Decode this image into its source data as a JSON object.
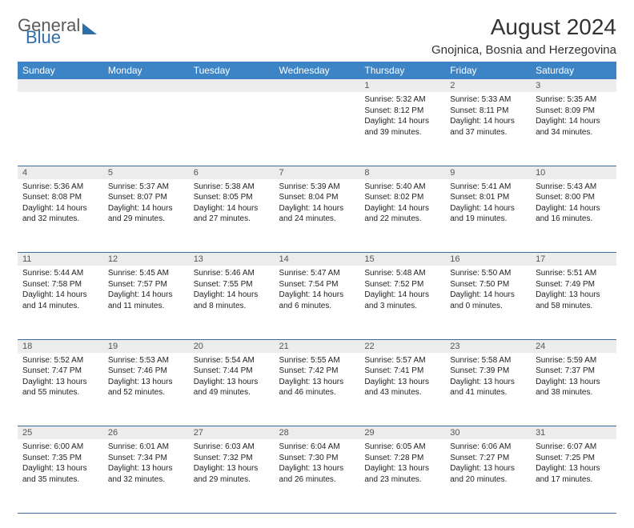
{
  "brand": {
    "line1": "General",
    "line2": "Blue"
  },
  "title": "August 2024",
  "location": "Gnojnica, Bosnia and Herzegovina",
  "colors": {
    "header_bg": "#3d84c6",
    "header_text": "#ffffff",
    "daynum_bg": "#ececec",
    "border": "#3d6a9a",
    "text": "#222222",
    "page_bg": "#ffffff"
  },
  "day_headers": [
    "Sunday",
    "Monday",
    "Tuesday",
    "Wednesday",
    "Thursday",
    "Friday",
    "Saturday"
  ],
  "weeks": [
    [
      null,
      null,
      null,
      null,
      {
        "n": "1",
        "sr": "5:32 AM",
        "ss": "8:12 PM",
        "dl": "14 hours and 39 minutes."
      },
      {
        "n": "2",
        "sr": "5:33 AM",
        "ss": "8:11 PM",
        "dl": "14 hours and 37 minutes."
      },
      {
        "n": "3",
        "sr": "5:35 AM",
        "ss": "8:09 PM",
        "dl": "14 hours and 34 minutes."
      }
    ],
    [
      {
        "n": "4",
        "sr": "5:36 AM",
        "ss": "8:08 PM",
        "dl": "14 hours and 32 minutes."
      },
      {
        "n": "5",
        "sr": "5:37 AM",
        "ss": "8:07 PM",
        "dl": "14 hours and 29 minutes."
      },
      {
        "n": "6",
        "sr": "5:38 AM",
        "ss": "8:05 PM",
        "dl": "14 hours and 27 minutes."
      },
      {
        "n": "7",
        "sr": "5:39 AM",
        "ss": "8:04 PM",
        "dl": "14 hours and 24 minutes."
      },
      {
        "n": "8",
        "sr": "5:40 AM",
        "ss": "8:02 PM",
        "dl": "14 hours and 22 minutes."
      },
      {
        "n": "9",
        "sr": "5:41 AM",
        "ss": "8:01 PM",
        "dl": "14 hours and 19 minutes."
      },
      {
        "n": "10",
        "sr": "5:43 AM",
        "ss": "8:00 PM",
        "dl": "14 hours and 16 minutes."
      }
    ],
    [
      {
        "n": "11",
        "sr": "5:44 AM",
        "ss": "7:58 PM",
        "dl": "14 hours and 14 minutes."
      },
      {
        "n": "12",
        "sr": "5:45 AM",
        "ss": "7:57 PM",
        "dl": "14 hours and 11 minutes."
      },
      {
        "n": "13",
        "sr": "5:46 AM",
        "ss": "7:55 PM",
        "dl": "14 hours and 8 minutes."
      },
      {
        "n": "14",
        "sr": "5:47 AM",
        "ss": "7:54 PM",
        "dl": "14 hours and 6 minutes."
      },
      {
        "n": "15",
        "sr": "5:48 AM",
        "ss": "7:52 PM",
        "dl": "14 hours and 3 minutes."
      },
      {
        "n": "16",
        "sr": "5:50 AM",
        "ss": "7:50 PM",
        "dl": "14 hours and 0 minutes."
      },
      {
        "n": "17",
        "sr": "5:51 AM",
        "ss": "7:49 PM",
        "dl": "13 hours and 58 minutes."
      }
    ],
    [
      {
        "n": "18",
        "sr": "5:52 AM",
        "ss": "7:47 PM",
        "dl": "13 hours and 55 minutes."
      },
      {
        "n": "19",
        "sr": "5:53 AM",
        "ss": "7:46 PM",
        "dl": "13 hours and 52 minutes."
      },
      {
        "n": "20",
        "sr": "5:54 AM",
        "ss": "7:44 PM",
        "dl": "13 hours and 49 minutes."
      },
      {
        "n": "21",
        "sr": "5:55 AM",
        "ss": "7:42 PM",
        "dl": "13 hours and 46 minutes."
      },
      {
        "n": "22",
        "sr": "5:57 AM",
        "ss": "7:41 PM",
        "dl": "13 hours and 43 minutes."
      },
      {
        "n": "23",
        "sr": "5:58 AM",
        "ss": "7:39 PM",
        "dl": "13 hours and 41 minutes."
      },
      {
        "n": "24",
        "sr": "5:59 AM",
        "ss": "7:37 PM",
        "dl": "13 hours and 38 minutes."
      }
    ],
    [
      {
        "n": "25",
        "sr": "6:00 AM",
        "ss": "7:35 PM",
        "dl": "13 hours and 35 minutes."
      },
      {
        "n": "26",
        "sr": "6:01 AM",
        "ss": "7:34 PM",
        "dl": "13 hours and 32 minutes."
      },
      {
        "n": "27",
        "sr": "6:03 AM",
        "ss": "7:32 PM",
        "dl": "13 hours and 29 minutes."
      },
      {
        "n": "28",
        "sr": "6:04 AM",
        "ss": "7:30 PM",
        "dl": "13 hours and 26 minutes."
      },
      {
        "n": "29",
        "sr": "6:05 AM",
        "ss": "7:28 PM",
        "dl": "13 hours and 23 minutes."
      },
      {
        "n": "30",
        "sr": "6:06 AM",
        "ss": "7:27 PM",
        "dl": "13 hours and 20 minutes."
      },
      {
        "n": "31",
        "sr": "6:07 AM",
        "ss": "7:25 PM",
        "dl": "13 hours and 17 minutes."
      }
    ]
  ],
  "labels": {
    "sunrise": "Sunrise:",
    "sunset": "Sunset:",
    "daylight": "Daylight:"
  }
}
